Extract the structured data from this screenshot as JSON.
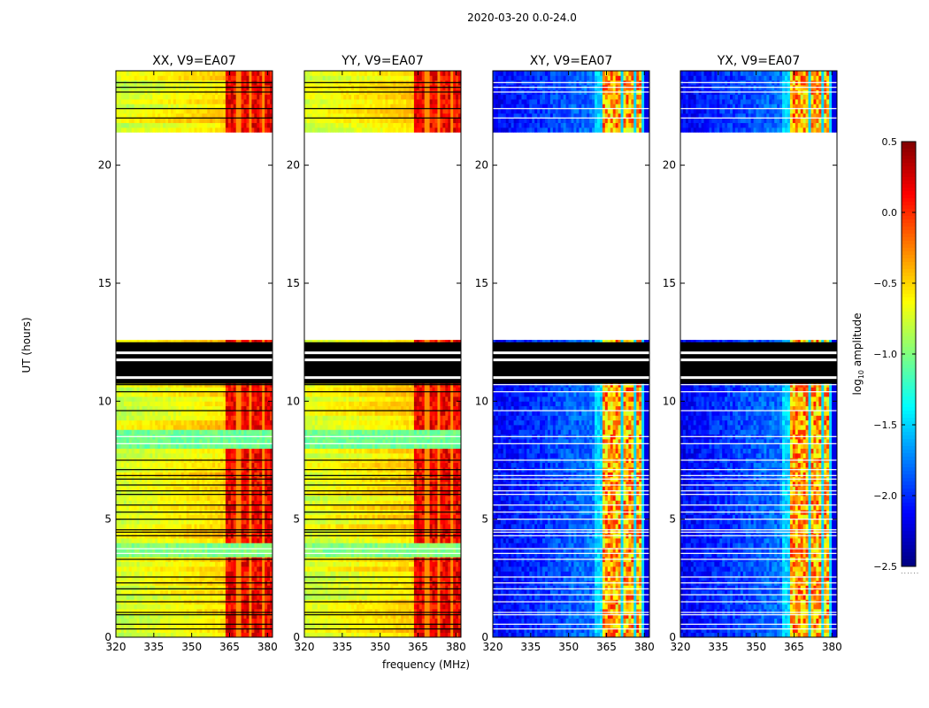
{
  "chart_data": {
    "type": "heatmap",
    "suptitle": "2020-03-20 0.0-24.0",
    "ylabel": "UT (hours)",
    "xlabel": "frequency (MHz)",
    "panels": [
      {
        "title": "XX, V9=EA07",
        "kind": "parallel"
      },
      {
        "title": "YY, V9=EA07",
        "kind": "parallel"
      },
      {
        "title": "XY, V9=EA07",
        "kind": "cross"
      },
      {
        "title": "YX, V9=EA07",
        "kind": "cross"
      }
    ],
    "x_range": [
      320,
      382
    ],
    "y_range": [
      0,
      24
    ],
    "x_ticks": [
      {
        "value": 320,
        "label": "320"
      },
      {
        "value": 335,
        "label": "335"
      },
      {
        "value": 350,
        "label": "350"
      },
      {
        "value": 365,
        "label": "365"
      },
      {
        "value": 380,
        "label": "380"
      }
    ],
    "y_ticks": [
      {
        "value": 0,
        "label": "0"
      },
      {
        "value": 5,
        "label": "5"
      },
      {
        "value": 10,
        "label": "10"
      },
      {
        "value": 15,
        "label": "15"
      },
      {
        "value": 20,
        "label": "20"
      }
    ],
    "data_gap_hours": [
      12.5,
      21.5
    ],
    "flagged_black_hours": [
      10.8,
      12.5
    ],
    "colorbar": {
      "label": "log10 amplitude",
      "range": [
        -2.5,
        0.5
      ],
      "ticks": [
        {
          "value": 0.5,
          "label": "0.5"
        },
        {
          "value": 0.0,
          "label": "0.0"
        },
        {
          "value": -0.5,
          "label": "−0.5"
        },
        {
          "value": -1.0,
          "label": "−1.0"
        },
        {
          "value": -1.5,
          "label": "−1.5"
        },
        {
          "value": -2.0,
          "label": "−2.0"
        },
        {
          "value": -2.5,
          "label": "−2.5"
        }
      ],
      "colormap": "jet"
    }
  }
}
